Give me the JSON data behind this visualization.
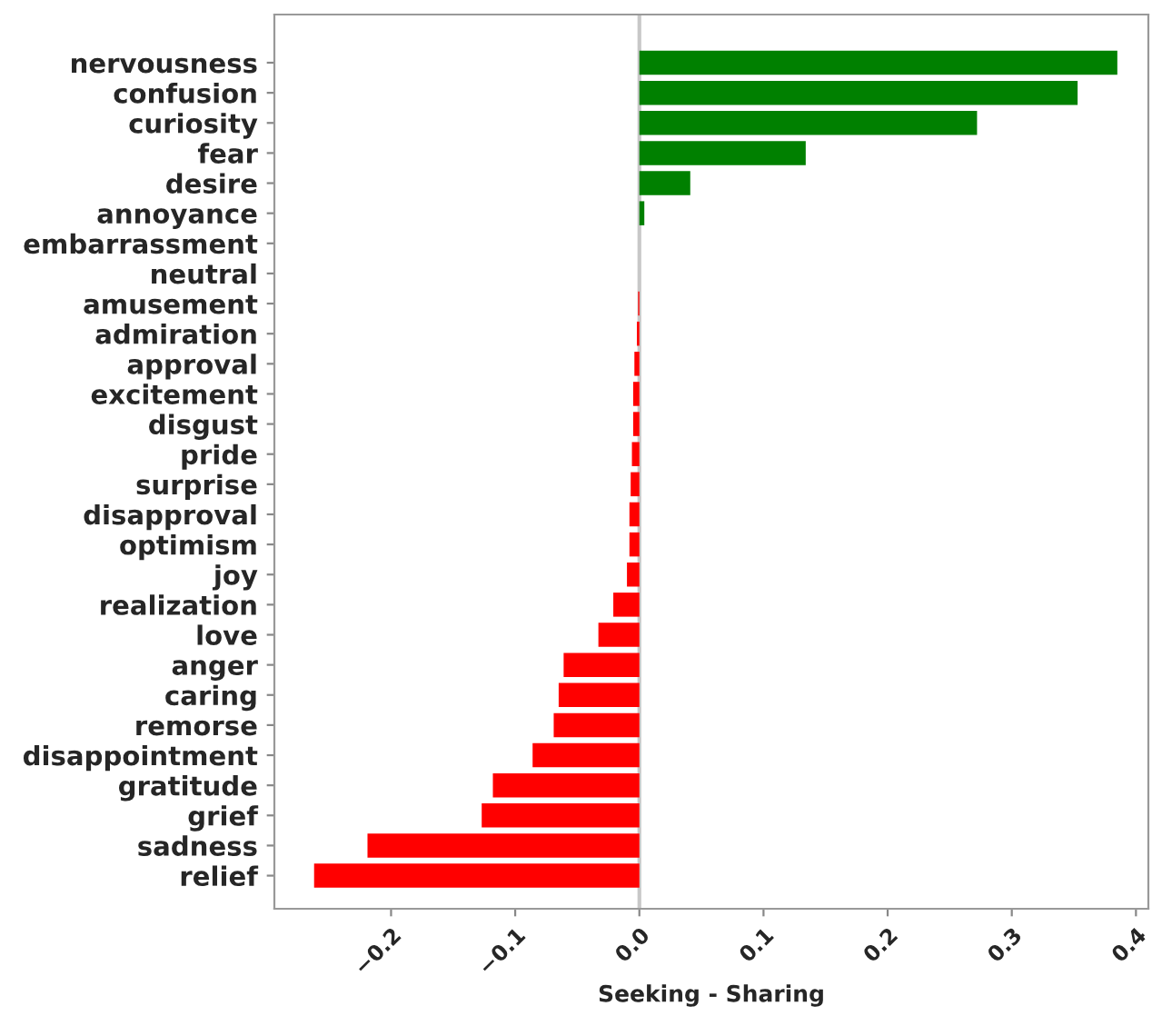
{
  "chart_data": {
    "type": "bar",
    "orientation": "horizontal",
    "xlabel": "Seeking - Sharing",
    "categories": [
      "nervousness",
      "confusion",
      "curiosity",
      "fear",
      "desire",
      "annoyance",
      "embarrassment",
      "neutral",
      "amusement",
      "admiration",
      "approval",
      "excitement",
      "disgust",
      "pride",
      "surprise",
      "disapproval",
      "optimism",
      "joy",
      "realization",
      "love",
      "anger",
      "caring",
      "remorse",
      "disappointment",
      "gratitude",
      "grief",
      "sadness",
      "relief"
    ],
    "values": [
      0.385,
      0.353,
      0.272,
      0.134,
      0.041,
      0.004,
      0.0,
      0.0,
      -0.001,
      -0.002,
      -0.004,
      -0.005,
      -0.005,
      -0.006,
      -0.007,
      -0.008,
      -0.008,
      -0.01,
      -0.021,
      -0.033,
      -0.061,
      -0.065,
      -0.069,
      -0.086,
      -0.118,
      -0.127,
      -0.219,
      -0.262
    ],
    "colors": [
      "#008000",
      "#008000",
      "#008000",
      "#008000",
      "#008000",
      "#008000",
      "#008000",
      "#ff0000",
      "#ff0000",
      "#ff0000",
      "#ff0000",
      "#ff0000",
      "#ff0000",
      "#ff0000",
      "#ff0000",
      "#ff0000",
      "#ff0000",
      "#ff0000",
      "#ff0000",
      "#ff0000",
      "#ff0000",
      "#ff0000",
      "#ff0000",
      "#ff0000",
      "#ff0000",
      "#ff0000",
      "#ff0000",
      "#ff0000"
    ],
    "xlim": [
      -0.294,
      0.41
    ],
    "xticks": [
      {
        "value": -0.2,
        "label": "−0.2"
      },
      {
        "value": -0.1,
        "label": "−0.1"
      },
      {
        "value": 0.0,
        "label": "0.0"
      },
      0.1,
      0.2,
      0.3,
      0.4
    ],
    "ref_lines": [
      {
        "axis": "x",
        "value": 0,
        "color": "#c8c8c8"
      }
    ],
    "grid": false,
    "legend": false
  }
}
